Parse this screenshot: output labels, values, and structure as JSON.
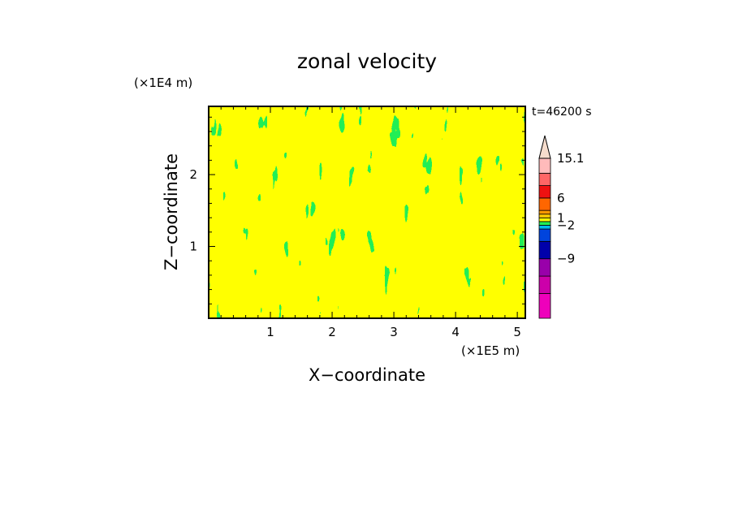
{
  "chart_data": {
    "type": "heatmap",
    "title": "zonal velocity",
    "xlabel": "X−coordinate",
    "ylabel": "Z−coordinate",
    "x_scale_label": "(×1E5 m)",
    "y_scale_label": "(×1E4 m)",
    "time_label": "t=46200 s",
    "xlim": [
      0,
      5.13
    ],
    "ylim": [
      0,
      2.95
    ],
    "x_ticks": [
      {
        "value": 1,
        "label": "1"
      },
      {
        "value": 2,
        "label": "2"
      },
      {
        "value": 3,
        "label": "3"
      },
      {
        "value": 4,
        "label": "4"
      },
      {
        "value": 5,
        "label": "5"
      }
    ],
    "y_ticks": [
      {
        "value": 1,
        "label": "1"
      },
      {
        "value": 2,
        "label": "2"
      }
    ],
    "dominant_levels": [
      {
        "range": "0 to 1",
        "color": "#ffff00"
      },
      {
        "range": "-1 to 0",
        "color": "#22ee55"
      }
    ],
    "colorbar": {
      "levels": [
        {
          "color": "#ee00bb"
        },
        {
          "color": "#cc00aa"
        },
        {
          "color": "#9900aa"
        },
        {
          "color": "#0000aa"
        },
        {
          "color": "#0044dd"
        },
        {
          "color": "#00bbee"
        },
        {
          "color": "#22ee55"
        },
        {
          "color": "#ffff00"
        },
        {
          "color": "#ffcc00"
        },
        {
          "color": "#ff9900"
        },
        {
          "color": "#ff6600"
        },
        {
          "color": "#ee1111"
        },
        {
          "color": "#ff6666"
        },
        {
          "color": "#ffbbbb"
        }
      ],
      "labels": [
        {
          "text": "15.1",
          "level": 14
        },
        {
          "text": "6",
          "level": 11
        },
        {
          "text": "1",
          "level": 8
        },
        {
          "text": "−2",
          "level": 6
        },
        {
          "text": "−9",
          "level": 3
        }
      ],
      "top_extension_color": "#f5dccc"
    }
  }
}
